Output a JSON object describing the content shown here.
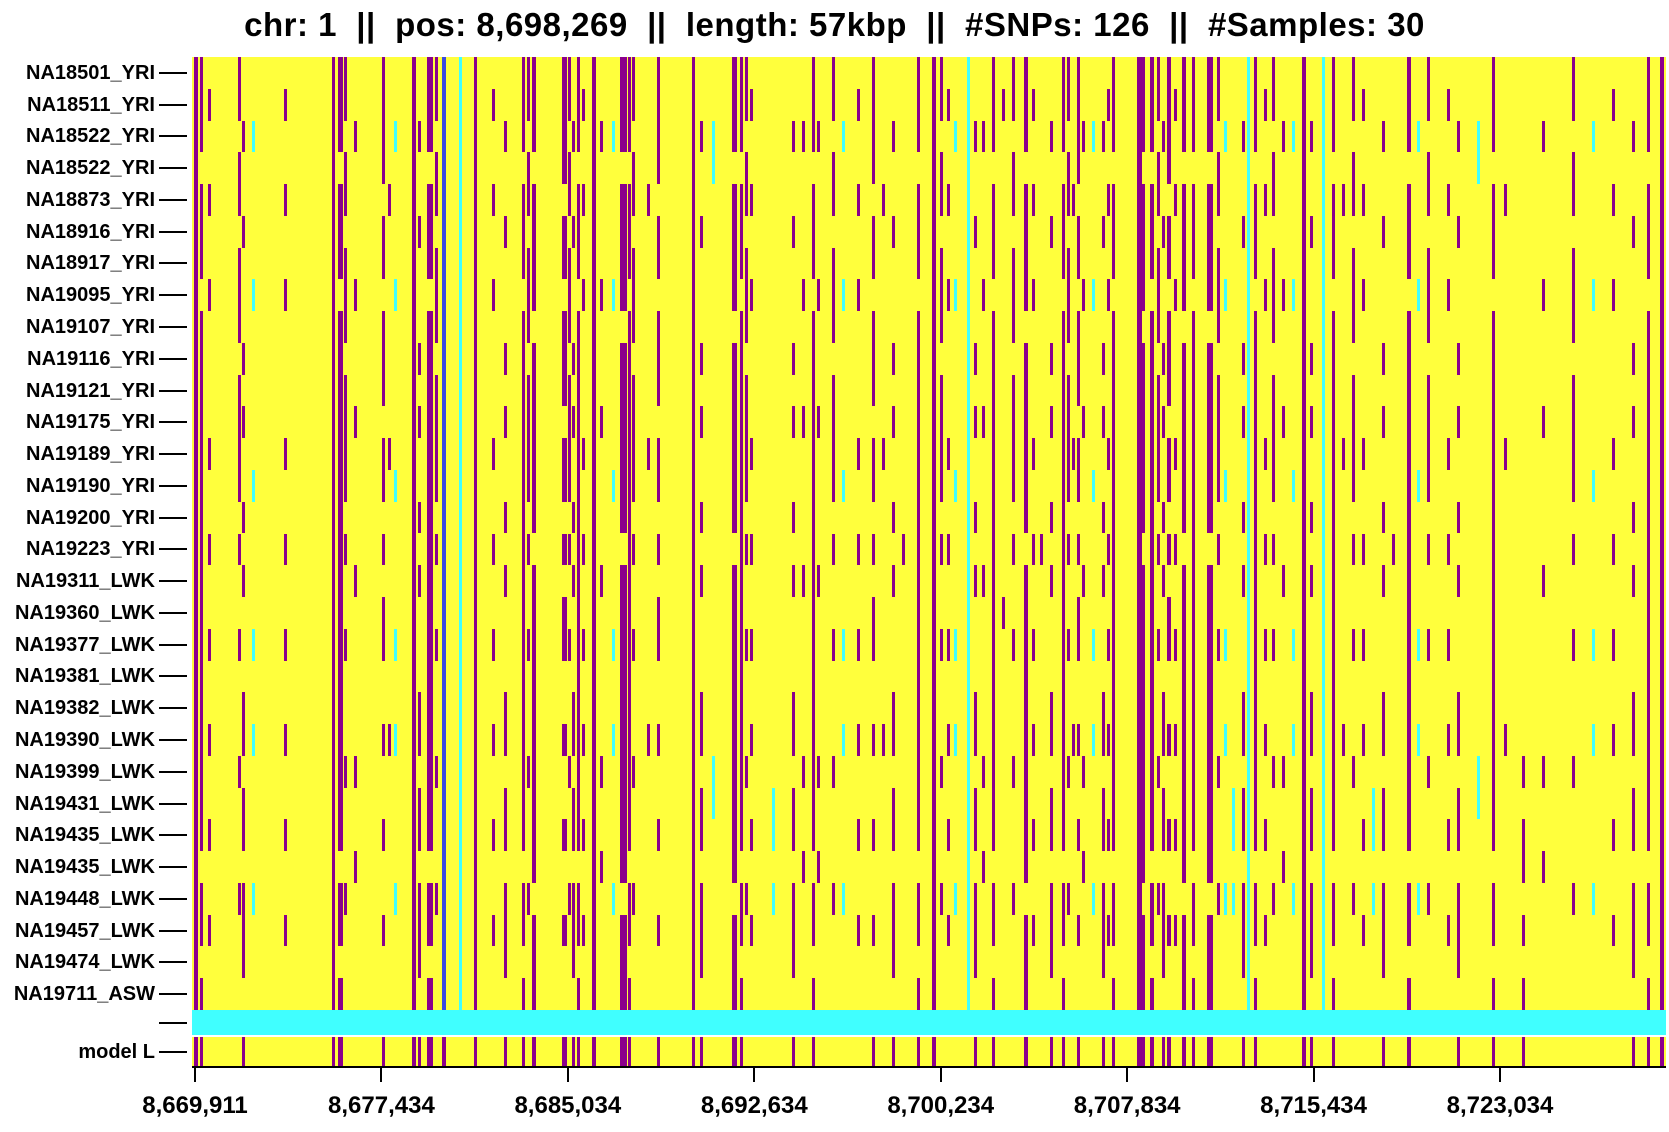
{
  "title": "chr: 1  ||  pos: 8,698,269  ||  length: 57kbp  ||  #SNPs: 126  ||  #Samples: 30",
  "header": {
    "chrom": "1",
    "pos": "8,698,269",
    "length": "57kbp",
    "n_snps": "126",
    "n_samples": "30"
  },
  "chart_data": {
    "type": "heatmap",
    "subtype": "haplotype-strip-plot",
    "title": "chr: 1 || pos: 8,698,269 || length: 57kbp || #SNPs: 126 || #Samples: 30",
    "samples": [
      "NA18501_YRI",
      "NA18511_YRI",
      "NA18522_YRI",
      "NA18522_YRI",
      "NA18873_YRI",
      "NA18916_YRI",
      "NA18917_YRI",
      "NA19095_YRI",
      "NA19107_YRI",
      "NA19116_YRI",
      "NA19121_YRI",
      "NA19175_YRI",
      "NA19189_YRI",
      "NA19190_YRI",
      "NA19200_YRI",
      "NA19223_YRI",
      "NA19311_LWK",
      "NA19360_LWK",
      "NA19377_LWK",
      "NA19381_LWK",
      "NA19382_LWK",
      "NA19390_LWK",
      "NA19399_LWK",
      "NA19431_LWK",
      "NA19435_LWK",
      "NA19435_LWK",
      "NA19448_LWK",
      "NA19457_LWK",
      "NA19474_LWK",
      "NA19711_ASW"
    ],
    "band_row_label": "",
    "model_row_label": "model L",
    "x_axis": {
      "tick_labels": [
        "8,669,911",
        "8,677,434",
        "8,685,034",
        "8,692,634",
        "8,700,234",
        "8,707,834",
        "8,715,434",
        "8,723,034"
      ],
      "tick_values": [
        8669911,
        8677434,
        8685034,
        8692634,
        8700234,
        8707834,
        8715434,
        8723034
      ]
    },
    "colors": {
      "background": "#ffff3c",
      "alt_allele": "#8b008b",
      "missing": "#40ffff",
      "blue_column": "#3b49e0",
      "band_row": "#40ffff",
      "text": "#000000"
    },
    "legend_position": "none",
    "grid": false,
    "patterns": {
      "A": "11111111111111111111111111111121",
      "B": "11101110111111111111111110110121",
      "C": "11011011101111010010001000100020",
      "D": "00100100010100101000110110111021",
      "E": "01001001000010010010010010010020",
      "F": "00100001000100001000001001000020",
      "G": "00001000000010000000010000000020",
      "H": "01000000000000000100000000000020",
      "J": "00000000000000010000000000000020",
      "K": "00200002000002000020020000200020",
      "L": "00220000000000000000002200000020",
      "M": "33333333333333333333333333333321",
      "N": "22222222222222222222222222222220",
      "P": "11110110111011010110010010010021",
      "Q": "11101111011111101111111111011121",
      "S": "00000000000000000000000220200020",
      "U": "00000000000000000000001011010121"
    },
    "columns": [
      [
        2,
        "A",
        4
      ],
      [
        8,
        "B"
      ],
      [
        16,
        "E"
      ],
      [
        46,
        "C"
      ],
      [
        50,
        "D"
      ],
      [
        60,
        "K"
      ],
      [
        92,
        "E"
      ],
      [
        140,
        "A"
      ],
      [
        146,
        "B",
        5
      ],
      [
        152,
        "C"
      ],
      [
        162,
        "F"
      ],
      [
        190,
        "P"
      ],
      [
        196,
        "G"
      ],
      [
        202,
        "K"
      ],
      [
        220,
        "A",
        4
      ],
      [
        226,
        "D"
      ],
      [
        235,
        "B",
        6
      ],
      [
        243,
        "C"
      ],
      [
        250,
        "M",
        4
      ],
      [
        267,
        "N"
      ],
      [
        282,
        "A"
      ],
      [
        300,
        "E"
      ],
      [
        312,
        "D"
      ],
      [
        330,
        "B"
      ],
      [
        335,
        "C"
      ],
      [
        340,
        "Q",
        4
      ],
      [
        370,
        "P",
        5
      ],
      [
        376,
        "C"
      ],
      [
        380,
        "D"
      ],
      [
        385,
        "B"
      ],
      [
        390,
        "E"
      ],
      [
        400,
        "A",
        4
      ],
      [
        408,
        "F"
      ],
      [
        420,
        "K"
      ],
      [
        428,
        "Q",
        7
      ],
      [
        436,
        "B"
      ],
      [
        440,
        "C"
      ],
      [
        455,
        "G"
      ],
      [
        465,
        "P"
      ],
      [
        500,
        "A"
      ],
      [
        508,
        "D"
      ],
      [
        520,
        "L"
      ],
      [
        540,
        "Q",
        5
      ],
      [
        548,
        "B"
      ],
      [
        553,
        "C"
      ],
      [
        558,
        "E"
      ],
      [
        580,
        "S"
      ],
      [
        600,
        "D"
      ],
      [
        610,
        "F"
      ],
      [
        620,
        "B"
      ],
      [
        625,
        "F"
      ],
      [
        640,
        "C"
      ],
      [
        650,
        "K"
      ],
      [
        665,
        "E"
      ],
      [
        680,
        "P"
      ],
      [
        690,
        "G"
      ],
      [
        700,
        "D"
      ],
      [
        710,
        "J"
      ],
      [
        725,
        "B"
      ],
      [
        740,
        "A",
        4
      ],
      [
        748,
        "C"
      ],
      [
        755,
        "E"
      ],
      [
        762,
        "K"
      ],
      [
        775,
        "N"
      ],
      [
        782,
        "D"
      ],
      [
        790,
        "F"
      ],
      [
        800,
        "B"
      ],
      [
        810,
        "H"
      ],
      [
        820,
        "C"
      ],
      [
        832,
        "Q",
        4
      ],
      [
        840,
        "E"
      ],
      [
        848,
        "J"
      ],
      [
        858,
        "D"
      ],
      [
        870,
        "B"
      ],
      [
        875,
        "C"
      ],
      [
        880,
        "G"
      ],
      [
        885,
        "P"
      ],
      [
        890,
        "F"
      ],
      [
        900,
        "K"
      ],
      [
        910,
        "D"
      ],
      [
        915,
        "E"
      ],
      [
        920,
        "B"
      ],
      [
        945,
        "A",
        5
      ],
      [
        950,
        "Q"
      ],
      [
        958,
        "B",
        4
      ],
      [
        965,
        "C"
      ],
      [
        970,
        "D"
      ],
      [
        975,
        "P",
        4
      ],
      [
        982,
        "E"
      ],
      [
        990,
        "Q",
        4
      ],
      [
        1000,
        "B"
      ],
      [
        1015,
        "Q",
        6
      ],
      [
        1025,
        "C"
      ],
      [
        1032,
        "K"
      ],
      [
        1040,
        "S"
      ],
      [
        1050,
        "D"
      ],
      [
        1055,
        "N"
      ],
      [
        1062,
        "B"
      ],
      [
        1072,
        "E"
      ],
      [
        1080,
        "C"
      ],
      [
        1090,
        "F"
      ],
      [
        1100,
        "K"
      ],
      [
        1110,
        "A",
        4
      ],
      [
        1118,
        "D"
      ],
      [
        1130,
        "N"
      ],
      [
        1140,
        "B"
      ],
      [
        1150,
        "G"
      ],
      [
        1160,
        "C"
      ],
      [
        1170,
        "E"
      ],
      [
        1180,
        "S"
      ],
      [
        1190,
        "D"
      ],
      [
        1200,
        "J"
      ],
      [
        1215,
        "B",
        4
      ],
      [
        1225,
        "K"
      ],
      [
        1235,
        "C"
      ],
      [
        1255,
        "E"
      ],
      [
        1265,
        "D"
      ],
      [
        1285,
        "L"
      ],
      [
        1300,
        "B"
      ],
      [
        1312,
        "G"
      ],
      [
        1330,
        "U"
      ],
      [
        1350,
        "F"
      ],
      [
        1380,
        "C"
      ],
      [
        1400,
        "K"
      ],
      [
        1420,
        "E"
      ],
      [
        1440,
        "D"
      ],
      [
        1455,
        "B"
      ],
      [
        1468,
        "A",
        4
      ]
    ]
  }
}
